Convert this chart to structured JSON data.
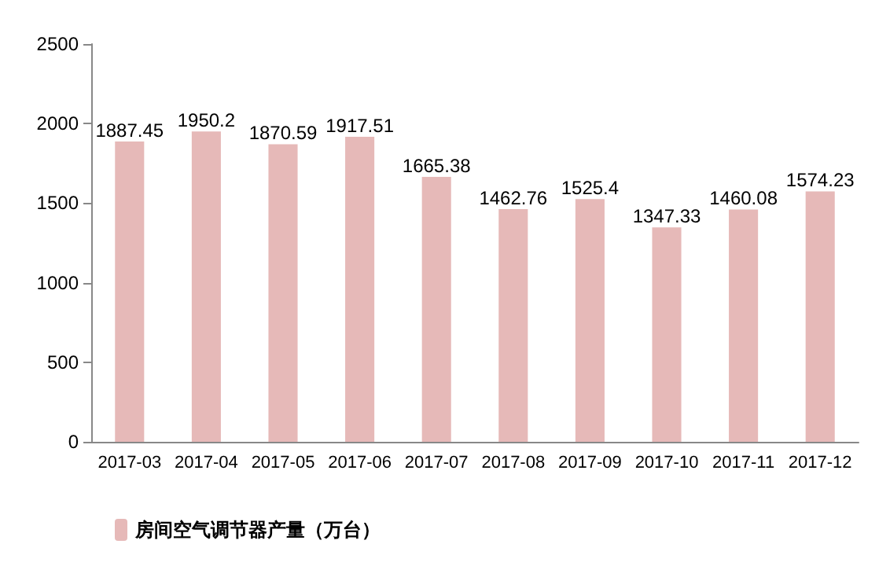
{
  "chart_data": {
    "type": "bar",
    "categories": [
      "2017-03",
      "2017-04",
      "2017-05",
      "2017-06",
      "2017-07",
      "2017-08",
      "2017-09",
      "2017-10",
      "2017-11",
      "2017-12"
    ],
    "series": [
      {
        "name": "房间空气调节器产量（万台）",
        "color": "#e6b9b8",
        "values": [
          1887.45,
          1950.2,
          1870.59,
          1917.51,
          1665.38,
          1462.76,
          1525.4,
          1347.33,
          1460.08,
          1574.23
        ]
      }
    ],
    "ylim": [
      0,
      2500
    ],
    "yticks": [
      0,
      500,
      1000,
      1500,
      2000,
      2500
    ],
    "grid": false,
    "legend": "bottom left",
    "data_labels": true
  }
}
